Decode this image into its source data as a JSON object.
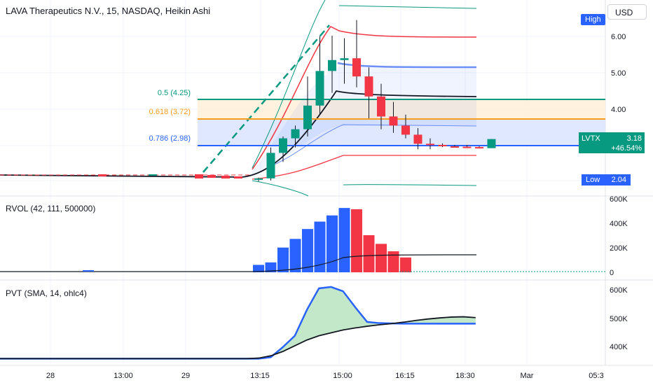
{
  "header": {
    "title": "LAVA Therapeutics N.V., 15, NASDAQ, Heikin Ashi",
    "currency": "USD"
  },
  "price_axis": {
    "ticks": [
      "6.00",
      "5.00",
      "4.00"
    ]
  },
  "badges": {
    "high": "High",
    "low_label": "Low",
    "low_value": "2.04",
    "symbol": "LVTX",
    "last": "3.18",
    "change": "+46.54%"
  },
  "fib": [
    {
      "label": "0.5 (4.25)",
      "color": "#089981"
    },
    {
      "label": "0.618 (3.72)",
      "color": "#f59d1c"
    },
    {
      "label": "0.786 (2.98)",
      "color": "#2962ff"
    }
  ],
  "rvol": {
    "title": "RVOL (42, 111, 500000)",
    "ticks": [
      "600K",
      "400K",
      "200K",
      "0"
    ]
  },
  "pvt": {
    "title": "PVT (SMA, 14, ohlc4)",
    "ticks": [
      "600K",
      "500K",
      "400K"
    ]
  },
  "time_axis": {
    "ticks": [
      "28",
      "13:00",
      "29",
      "13:15",
      "15:00",
      "16:15",
      "18:30",
      "Mar",
      "05:3"
    ]
  },
  "colors": {
    "up": "#089981",
    "down": "#f23645",
    "blue": "#2962ff"
  },
  "chart_data": {
    "type": "candlestick",
    "ohlc": [
      {
        "o": 2.06,
        "h": 2.12,
        "l": 2.02,
        "c": 2.1
      },
      {
        "o": 2.1,
        "h": 2.95,
        "l": 2.04,
        "c": 2.8
      },
      {
        "o": 2.8,
        "h": 3.25,
        "l": 2.55,
        "c": 3.2
      },
      {
        "o": 3.2,
        "h": 3.55,
        "l": 2.95,
        "c": 3.45
      },
      {
        "o": 3.45,
        "h": 4.9,
        "l": 3.25,
        "c": 4.1
      },
      {
        "o": 4.1,
        "h": 6.0,
        "l": 3.85,
        "c": 5.05
      },
      {
        "o": 5.05,
        "h": 6.02,
        "l": 4.45,
        "c": 5.35
      },
      {
        "o": 5.35,
        "h": 5.95,
        "l": 4.7,
        "c": 5.4
      },
      {
        "o": 5.4,
        "h": 6.45,
        "l": 4.6,
        "c": 4.9
      },
      {
        "o": 4.9,
        "h": 5.15,
        "l": 3.75,
        "c": 4.35
      },
      {
        "o": 4.35,
        "h": 4.7,
        "l": 3.45,
        "c": 3.8
      },
      {
        "o": 3.8,
        "h": 4.2,
        "l": 3.35,
        "c": 3.55
      },
      {
        "o": 3.55,
        "h": 3.85,
        "l": 3.2,
        "c": 3.3
      },
      {
        "o": 3.3,
        "h": 3.48,
        "l": 2.9,
        "c": 3.05
      },
      {
        "o": 3.05,
        "h": 3.2,
        "l": 2.9,
        "c": 3.02
      },
      {
        "o": 3.02,
        "h": 3.06,
        "l": 2.96,
        "c": 2.98
      },
      {
        "o": 2.98,
        "h": 3.02,
        "l": 2.95,
        "c": 2.97
      },
      {
        "o": 2.97,
        "h": 3.02,
        "l": 2.94,
        "c": 2.96
      },
      {
        "o": 2.96,
        "h": 2.98,
        "l": 2.92,
        "c": 2.93
      },
      {
        "o": 2.93,
        "h": 3.18,
        "l": 2.93,
        "c": 3.18
      }
    ],
    "fib_levels": [
      4.25,
      3.72,
      2.98
    ],
    "rvol_values": [
      60000,
      80000,
      200000,
      270000,
      350000,
      410000,
      460000,
      520000,
      510000,
      300000,
      230000,
      170000,
      120000,
      0,
      0,
      0,
      0,
      0,
      0,
      0
    ],
    "pvt": [
      360000,
      360000,
      365000,
      400000,
      440000,
      530000,
      605000,
      610000,
      595000,
      540000,
      488000,
      484000,
      483000,
      482000,
      482000,
      482000,
      482000,
      482000,
      482000,
      482000
    ],
    "pvt_sma": [
      360000,
      362000,
      370000,
      385000,
      405000,
      425000,
      440000,
      450000,
      460000,
      467000,
      473000,
      478000,
      482000,
      487000,
      493000,
      498000,
      502000,
      505000,
      506000,
      503000
    ]
  }
}
